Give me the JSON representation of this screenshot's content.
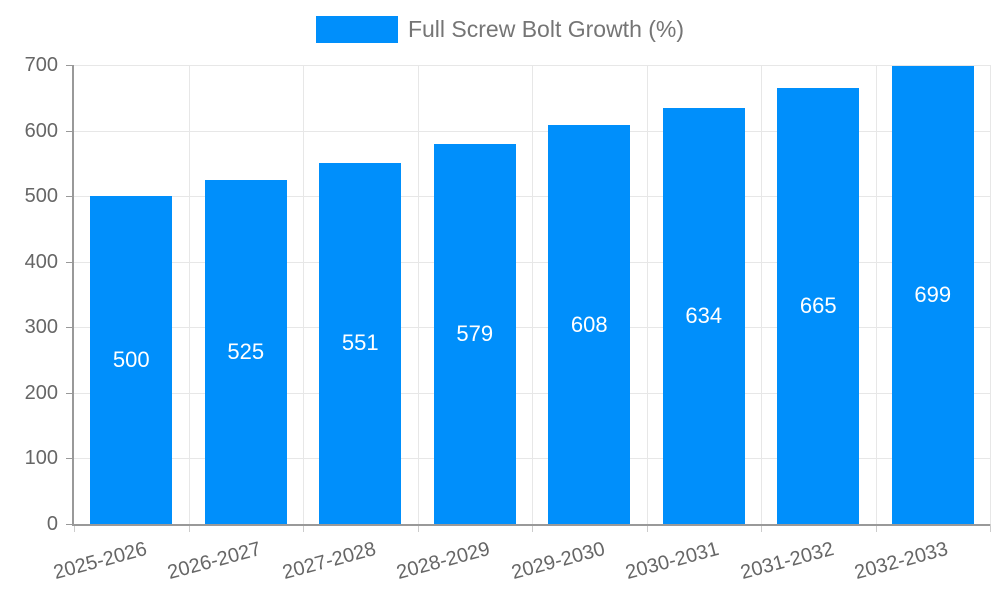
{
  "legend": {
    "label": "Full Screw Bolt Growth (%)"
  },
  "colors": {
    "bar": "#008FFB",
    "axis_line": "#999999",
    "grid_line": "#e7e7e7",
    "y_tick": "#999999",
    "x_tick": "#cccccc",
    "tick_label_text": "#666666",
    "legend_text": "#757575",
    "value_label_text": "#ffffff",
    "background": "#ffffff"
  },
  "chart_data": {
    "type": "bar",
    "title": "",
    "legend_entries": [
      "Full Screw Bolt Growth (%)"
    ],
    "legend_position": "top-center",
    "categories": [
      "2025-2026",
      "2026-2027",
      "2027-2028",
      "2028-2029",
      "2029-2030",
      "2030-2031",
      "2031-2032",
      "2032-2033"
    ],
    "values": [
      500,
      525,
      551,
      579,
      608,
      634,
      665,
      699
    ],
    "xlabel": "",
    "ylabel": "",
    "ylim": [
      0,
      700
    ],
    "yticks": [
      0,
      100,
      200,
      300,
      400,
      500,
      600,
      700
    ],
    "grid": true,
    "value_labels": "inside-center",
    "x_label_rotation_deg": -15
  }
}
